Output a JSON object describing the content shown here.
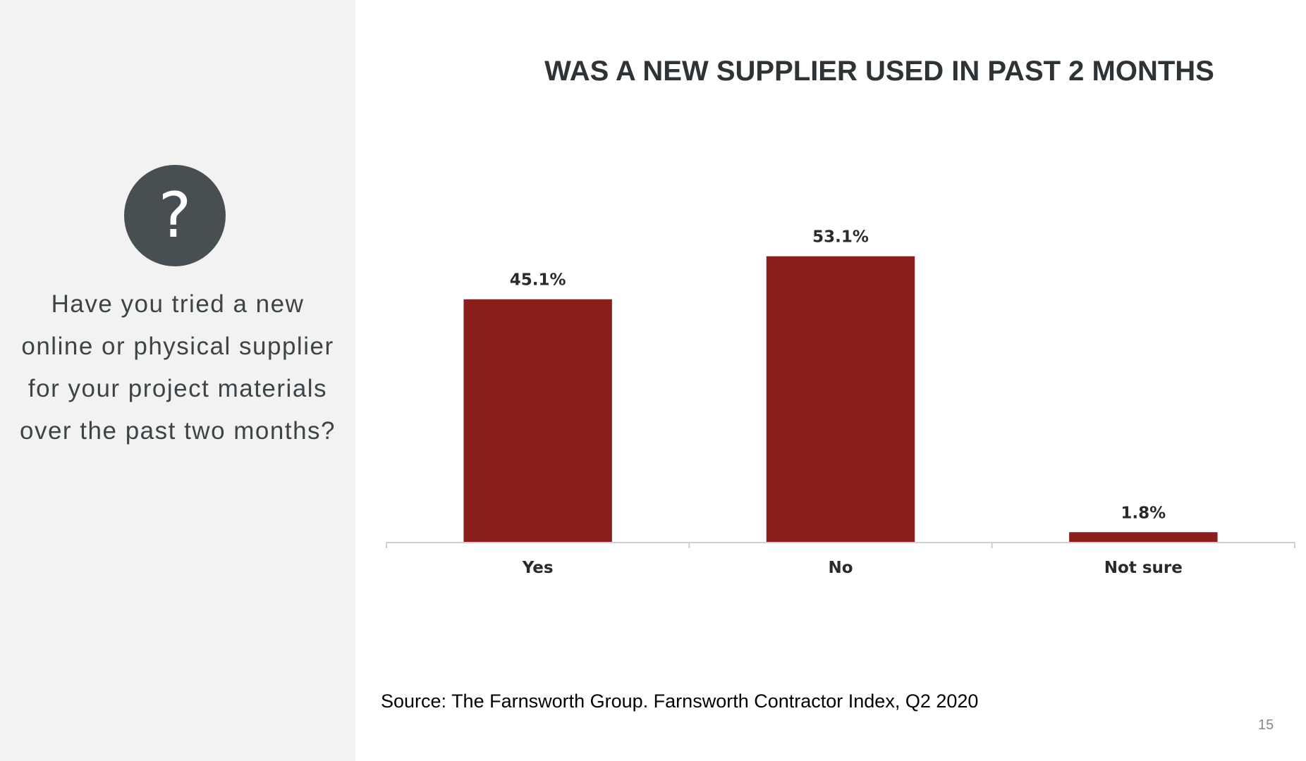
{
  "sidebar": {
    "icon": "?",
    "question": "Have you tried a new online or physical supplier for your project materials over the past two months?"
  },
  "chart_data": {
    "type": "bar",
    "title": "WAS A NEW SUPPLIER USED IN PAST 2 MONTHS",
    "categories": [
      "Yes",
      "No",
      "Not sure"
    ],
    "values": [
      45.1,
      53.1,
      1.8
    ],
    "value_labels": [
      "45.1%",
      "53.1%",
      "1.8%"
    ],
    "color": "#8b1e1a",
    "ylim": [
      0,
      60
    ]
  },
  "footer": {
    "source": "Source: The Farnsworth Group.  Farnsworth Contractor Index, Q2 2020",
    "page_number": "15"
  }
}
